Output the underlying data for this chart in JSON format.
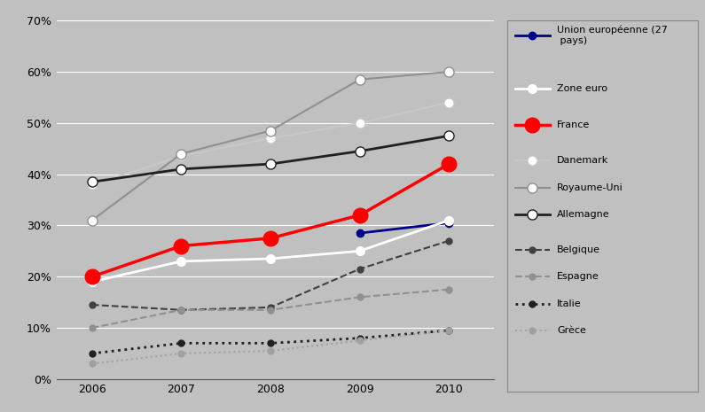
{
  "years": [
    2006,
    2007,
    2008,
    2009,
    2010
  ],
  "series": [
    {
      "name": "Union européenne (27\n pays)",
      "color": "#00008B",
      "linestyle": "-",
      "linewidth": 2.0,
      "marker": "o",
      "markerfacecolor": "#00008B",
      "markeredgecolor": "#00008B",
      "markersize": 6,
      "values": [
        null,
        null,
        null,
        0.285,
        0.305
      ]
    },
    {
      "name": "Zone euro",
      "color": "#FFFFFF",
      "linestyle": "-",
      "linewidth": 2.0,
      "marker": "o",
      "markerfacecolor": "#FFFFFF",
      "markeredgecolor": "#FFFFFF",
      "markersize": 7,
      "values": [
        0.19,
        0.23,
        0.235,
        0.25,
        0.31
      ]
    },
    {
      "name": "France",
      "color": "#FF0000",
      "linestyle": "-",
      "linewidth": 2.5,
      "marker": "o",
      "markerfacecolor": "#FF0000",
      "markeredgecolor": "#FF0000",
      "markersize": 12,
      "values": [
        0.2,
        0.26,
        0.275,
        0.32,
        0.42
      ]
    },
    {
      "name": "Danemark",
      "color": "#C8C8C8",
      "linestyle": "-",
      "linewidth": 1.5,
      "marker": "o",
      "markerfacecolor": "#FFFFFF",
      "markeredgecolor": "#C8C8C8",
      "markersize": 8,
      "values": [
        0.38,
        0.435,
        0.47,
        0.5,
        0.54
      ]
    },
    {
      "name": "Royaume-Uni",
      "color": "#909090",
      "linestyle": "-",
      "linewidth": 1.5,
      "marker": "o",
      "markerfacecolor": "#FFFFFF",
      "markeredgecolor": "#909090",
      "markersize": 8,
      "values": [
        0.31,
        0.44,
        0.485,
        0.585,
        0.6
      ]
    },
    {
      "name": "Allemagne",
      "color": "#202020",
      "linestyle": "-",
      "linewidth": 2.0,
      "marker": "o",
      "markerfacecolor": "#FFFFFF",
      "markeredgecolor": "#202020",
      "markersize": 8,
      "values": [
        0.385,
        0.41,
        0.42,
        0.445,
        0.475
      ]
    },
    {
      "name": "Belgique",
      "color": "#404040",
      "linestyle": "--",
      "linewidth": 1.5,
      "marker": "o",
      "markerfacecolor": "#404040",
      "markeredgecolor": "#404040",
      "markersize": 5,
      "values": [
        0.145,
        0.135,
        0.14,
        0.215,
        0.27
      ]
    },
    {
      "name": "Espagne",
      "color": "#909090",
      "linestyle": "--",
      "linewidth": 1.5,
      "marker": "o",
      "markerfacecolor": "#909090",
      "markeredgecolor": "#909090",
      "markersize": 5,
      "values": [
        0.1,
        0.135,
        0.135,
        0.16,
        0.175
      ]
    },
    {
      "name": "Italie",
      "color": "#202020",
      "linestyle": ":",
      "linewidth": 2.0,
      "marker": "o",
      "markerfacecolor": "#202020",
      "markeredgecolor": "#202020",
      "markersize": 5,
      "values": [
        0.05,
        0.07,
        0.07,
        0.08,
        0.095
      ]
    },
    {
      "name": "Grèce",
      "color": "#A0A0A0",
      "linestyle": ":",
      "linewidth": 1.5,
      "marker": "o",
      "markerfacecolor": "#A0A0A0",
      "markeredgecolor": "#A0A0A0",
      "markersize": 5,
      "values": [
        0.03,
        0.05,
        0.055,
        0.075,
        0.095
      ]
    }
  ],
  "ylim": [
    0.0,
    0.7
  ],
  "yticks": [
    0.0,
    0.1,
    0.2,
    0.3,
    0.4,
    0.5,
    0.6,
    0.7
  ],
  "background_color": "#C0C0C0",
  "plot_background_color": "#C0C0C0",
  "legend_background_color": "#C0C0C0",
  "grid_color": "#FFFFFF",
  "figsize": [
    7.95,
    4.65
  ],
  "dpi": 100
}
